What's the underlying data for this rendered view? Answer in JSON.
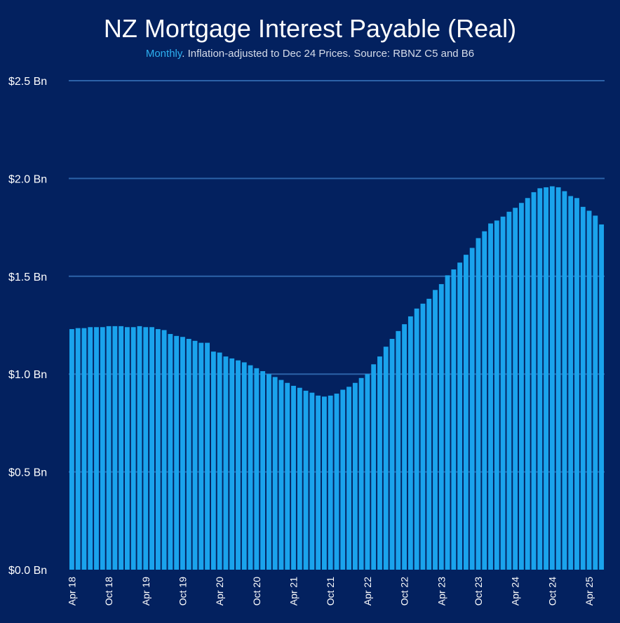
{
  "chart_data": {
    "type": "bar",
    "title": "NZ Mortgage Interest Payable (Real)",
    "subtitle": {
      "highlight": "Monthly",
      "rest": ". Inflation-adjusted to Dec 24 Prices.  Source: RBNZ C5 and B6"
    },
    "xlabel": "",
    "ylabel": "",
    "ylim": [
      0,
      2.5
    ],
    "y_ticks": [
      {
        "value": 0.0,
        "label": "$0.0 Bn"
      },
      {
        "value": 0.5,
        "label": "$0.5 Bn"
      },
      {
        "value": 1.0,
        "label": "$1.0 Bn"
      },
      {
        "value": 1.5,
        "label": "$1.5 Bn"
      },
      {
        "value": 2.0,
        "label": "$2.0 Bn"
      },
      {
        "value": 2.5,
        "label": "$2.5 Bn"
      }
    ],
    "x_tick_labels": [
      "Apr 18",
      "Oct 18",
      "Apr 19",
      "Oct 19",
      "Apr 20",
      "Oct 20",
      "Apr 21",
      "Oct 21",
      "Apr 22",
      "Oct 22",
      "Apr 23",
      "Oct 23",
      "Apr 24",
      "Oct 24",
      "Apr 25"
    ],
    "x_tick_every": 6,
    "grid": "horizontal",
    "legend": "none",
    "colors": {
      "bar": "#1AA3EC",
      "gridline": "#2C62A8",
      "background": "#03215F"
    },
    "categories": [
      "Apr 18",
      "May 18",
      "Jun 18",
      "Jul 18",
      "Aug 18",
      "Sep 18",
      "Oct 18",
      "Nov 18",
      "Dec 18",
      "Jan 19",
      "Feb 19",
      "Mar 19",
      "Apr 19",
      "May 19",
      "Jun 19",
      "Jul 19",
      "Aug 19",
      "Sep 19",
      "Oct 19",
      "Nov 19",
      "Dec 19",
      "Jan 20",
      "Feb 20",
      "Mar 20",
      "Apr 20",
      "May 20",
      "Jun 20",
      "Jul 20",
      "Aug 20",
      "Sep 20",
      "Oct 20",
      "Nov 20",
      "Dec 20",
      "Jan 21",
      "Feb 21",
      "Mar 21",
      "Apr 21",
      "May 21",
      "Jun 21",
      "Jul 21",
      "Aug 21",
      "Sep 21",
      "Oct 21",
      "Nov 21",
      "Dec 21",
      "Jan 22",
      "Feb 22",
      "Mar 22",
      "Apr 22",
      "May 22",
      "Jun 22",
      "Jul 22",
      "Aug 22",
      "Sep 22",
      "Oct 22",
      "Nov 22",
      "Dec 22",
      "Jan 23",
      "Feb 23",
      "Mar 23",
      "Apr 23",
      "May 23",
      "Jun 23",
      "Jul 23",
      "Aug 23",
      "Sep 23",
      "Oct 23",
      "Nov 23",
      "Dec 23",
      "Jan 24",
      "Feb 24",
      "Mar 24",
      "Apr 24",
      "May 24",
      "Jun 24",
      "Jul 24",
      "Aug 24",
      "Sep 24",
      "Oct 24",
      "Nov 24",
      "Dec 24",
      "Jan 25",
      "Feb 25",
      "Mar 25",
      "Apr 25",
      "May 25",
      "Jun 25"
    ],
    "values": [
      1.23,
      1.235,
      1.235,
      1.24,
      1.24,
      1.24,
      1.245,
      1.245,
      1.245,
      1.24,
      1.24,
      1.245,
      1.24,
      1.24,
      1.23,
      1.225,
      1.205,
      1.195,
      1.19,
      1.18,
      1.17,
      1.16,
      1.16,
      1.115,
      1.11,
      1.09,
      1.08,
      1.07,
      1.06,
      1.045,
      1.03,
      1.015,
      1.0,
      0.985,
      0.97,
      0.955,
      0.94,
      0.93,
      0.915,
      0.905,
      0.89,
      0.885,
      0.89,
      0.9,
      0.92,
      0.935,
      0.955,
      0.98,
      1.0,
      1.05,
      1.09,
      1.14,
      1.18,
      1.22,
      1.255,
      1.295,
      1.335,
      1.36,
      1.385,
      1.43,
      1.46,
      1.505,
      1.535,
      1.57,
      1.61,
      1.645,
      1.695,
      1.73,
      1.77,
      1.785,
      1.805,
      1.83,
      1.85,
      1.875,
      1.9,
      1.93,
      1.95,
      1.955,
      1.96,
      1.955,
      1.935,
      1.91,
      1.9,
      1.855,
      1.835,
      1.81,
      1.765
    ]
  }
}
